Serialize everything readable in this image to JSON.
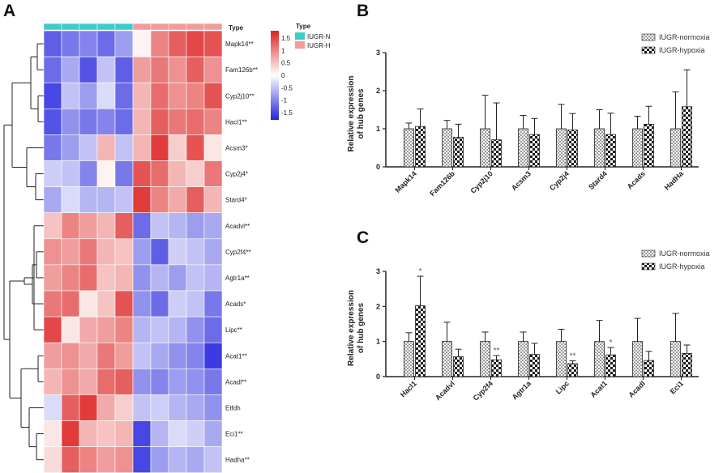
{
  "chart_data": [
    {
      "type": "heatmap",
      "panel": "A",
      "annotation_label": "Type",
      "legend_title": "Type",
      "groups": [
        {
          "name": "IUGR-N",
          "color": "#3dcccc"
        },
        {
          "name": "IUGR-H",
          "color": "#f49a9a"
        }
      ],
      "group_of_column": [
        "IUGR-N",
        "IUGR-N",
        "IUGR-N",
        "IUGR-N",
        "IUGR-N",
        "IUGR-H",
        "IUGR-H",
        "IUGR-H",
        "IUGR-H",
        "IUGR-H"
      ],
      "colorbar_ticks": [
        "1.5",
        "1",
        "0.5",
        "0",
        "-0.5",
        "-1",
        "-1.5"
      ],
      "colorbar_range": [
        -1.8,
        1.8
      ],
      "colors": {
        "low": "#2222dd",
        "mid": "#ffffff",
        "high": "#dd2222"
      },
      "rows": [
        "Mapk14**",
        "Fam126b**",
        "Cyp2j10**",
        "Hacl1**",
        "Acsm3*",
        "Cyp2j4*",
        "Stard4*",
        "Acadvl**",
        "Cyp2f4**",
        "Agtr1a**",
        "Acads*",
        "Lipc**",
        "Acat1**",
        "Acadl**",
        "Etfdh",
        "Eci1**",
        "Hadha**"
      ],
      "values": [
        [
          -1.3,
          -1.1,
          -1.0,
          -1.2,
          -0.8,
          0.1,
          1.0,
          1.3,
          1.5,
          1.4
        ],
        [
          -1.2,
          -0.7,
          -1.4,
          -0.5,
          -1.3,
          0.8,
          1.1,
          0.9,
          1.3,
          0.9
        ],
        [
          -1.5,
          -0.5,
          -0.8,
          -0.3,
          -1.2,
          0.6,
          1.2,
          0.9,
          1.0,
          1.4
        ],
        [
          -1.4,
          -0.9,
          -1.1,
          -1.0,
          -1.2,
          0.6,
          1.3,
          1.1,
          1.2,
          1.0
        ],
        [
          -1.1,
          -0.8,
          -0.5,
          0.6,
          -0.5,
          0.6,
          1.6,
          0.4,
          1.4,
          0.2
        ],
        [
          -0.4,
          -0.5,
          -1.0,
          0.1,
          -1.1,
          1.4,
          1.2,
          0.6,
          0.4,
          1.1
        ],
        [
          -0.7,
          -0.3,
          -0.6,
          -0.6,
          -0.5,
          1.6,
          1.0,
          0.7,
          1.3,
          0.6
        ],
        [
          0.5,
          1.0,
          0.8,
          0.6,
          1.3,
          -1.2,
          -0.5,
          -0.6,
          -0.8,
          -0.7
        ],
        [
          0.9,
          0.8,
          1.1,
          0.6,
          0.5,
          -0.8,
          -1.3,
          -0.4,
          -0.5,
          -0.7
        ],
        [
          0.8,
          1.0,
          1.2,
          0.5,
          0.6,
          -0.9,
          -0.6,
          -0.8,
          -0.5,
          -0.6
        ],
        [
          1.1,
          1.2,
          0.2,
          0.5,
          1.4,
          -0.9,
          -1.2,
          -0.4,
          -0.5,
          -1.1
        ],
        [
          1.5,
          0.2,
          0.7,
          0.8,
          1.0,
          -0.6,
          -0.5,
          -0.6,
          -0.9,
          -1.2
        ],
        [
          0.8,
          0.9,
          0.7,
          1.1,
          0.8,
          -0.5,
          -0.7,
          -0.9,
          -1.0,
          -1.6
        ],
        [
          0.6,
          0.9,
          0.7,
          1.2,
          1.3,
          -0.9,
          -1.0,
          -0.8,
          -0.9,
          -1.1
        ],
        [
          -0.3,
          1.3,
          1.6,
          0.7,
          0.4,
          -0.5,
          -0.4,
          -0.6,
          -0.7,
          -0.9
        ],
        [
          0.2,
          1.6,
          0.6,
          0.5,
          0.6,
          -1.5,
          -0.6,
          -0.3,
          -0.4,
          -0.7
        ],
        [
          0.3,
          1.3,
          1.0,
          0.8,
          0.9,
          -1.5,
          -0.8,
          -0.6,
          -0.7,
          -0.5
        ]
      ]
    },
    {
      "type": "bar",
      "panel": "B",
      "ylabel": "Relative  expression of hub genes",
      "ylim": [
        0,
        3
      ],
      "yticks": [
        0,
        1,
        2,
        3
      ],
      "categories": [
        "Mapk14",
        "Fam126b",
        "Cyp2j10",
        "Acsm3",
        "Cyp2j4",
        "Stard4",
        "Acads",
        "HadHa"
      ],
      "series": [
        {
          "name": "IUGR-normoxia",
          "values": [
            1.0,
            1.0,
            1.0,
            1.0,
            1.0,
            1.0,
            1.0,
            1.0
          ],
          "errors": [
            0.15,
            0.22,
            0.88,
            0.35,
            0.64,
            0.5,
            0.33,
            0.97
          ]
        },
        {
          "name": "IUGR-hypoxia",
          "values": [
            1.06,
            0.78,
            0.71,
            0.85,
            0.97,
            0.85,
            1.12,
            1.58
          ],
          "errors": [
            0.46,
            0.34,
            0.97,
            0.42,
            0.43,
            0.56,
            0.47,
            0.97
          ]
        }
      ],
      "significance": [
        "",
        "",
        "",
        "",
        "",
        "",
        "",
        ""
      ]
    },
    {
      "type": "bar",
      "panel": "C",
      "ylabel": "Relative  expression of hub genes",
      "ylim": [
        0,
        3
      ],
      "yticks": [
        0,
        1,
        2,
        3
      ],
      "categories": [
        "Hacl1",
        "Acadvl",
        "Cyp2f4",
        "Agtr1a",
        "Lipc",
        "Acat1",
        "Acadl",
        "Eci1"
      ],
      "series": [
        {
          "name": "IUGR-normoxia",
          "values": [
            1.0,
            1.0,
            1.0,
            1.0,
            1.0,
            1.0,
            1.0,
            1.0
          ],
          "errors": [
            0.25,
            0.55,
            0.27,
            0.27,
            0.35,
            0.6,
            0.66,
            0.8
          ]
        },
        {
          "name": "IUGR-hypoxia",
          "values": [
            2.02,
            0.57,
            0.48,
            0.63,
            0.37,
            0.62,
            0.46,
            0.66
          ],
          "errors": [
            0.84,
            0.21,
            0.12,
            0.32,
            0.08,
            0.21,
            0.26,
            0.24
          ]
        }
      ],
      "significance": [
        "*",
        "",
        "**",
        "",
        "**",
        "*",
        "",
        ""
      ]
    }
  ]
}
